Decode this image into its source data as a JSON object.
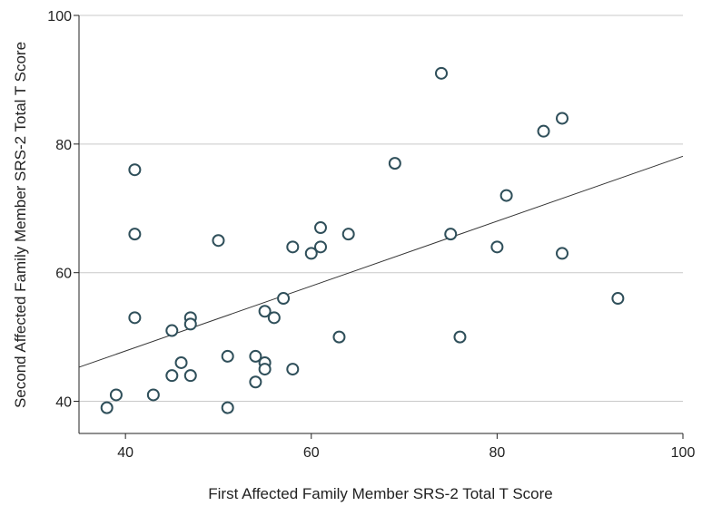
{
  "chart_data": {
    "type": "scatter",
    "xlabel": "First Affected Family Member SRS-2 Total T Score",
    "ylabel": "Second Affected Family Member SRS-2 Total T Score",
    "xlim": [
      35,
      100
    ],
    "ylim": [
      35,
      100
    ],
    "xticks": [
      40,
      60,
      80,
      100
    ],
    "yticks": [
      40,
      60,
      80,
      100
    ],
    "grid": "horizontal",
    "point_color": "#2f4f5a",
    "line_color": "#333333",
    "points": [
      {
        "x": 38,
        "y": 39
      },
      {
        "x": 39,
        "y": 41
      },
      {
        "x": 41,
        "y": 76
      },
      {
        "x": 41,
        "y": 66
      },
      {
        "x": 41,
        "y": 53
      },
      {
        "x": 43,
        "y": 41
      },
      {
        "x": 45,
        "y": 51
      },
      {
        "x": 45,
        "y": 44
      },
      {
        "x": 46,
        "y": 46
      },
      {
        "x": 47,
        "y": 53
      },
      {
        "x": 47,
        "y": 52
      },
      {
        "x": 47,
        "y": 44
      },
      {
        "x": 50,
        "y": 65
      },
      {
        "x": 51,
        "y": 47
      },
      {
        "x": 51,
        "y": 39
      },
      {
        "x": 54,
        "y": 47
      },
      {
        "x": 54,
        "y": 43
      },
      {
        "x": 55,
        "y": 54
      },
      {
        "x": 55,
        "y": 46
      },
      {
        "x": 55,
        "y": 45
      },
      {
        "x": 56,
        "y": 53
      },
      {
        "x": 57,
        "y": 56
      },
      {
        "x": 58,
        "y": 64
      },
      {
        "x": 58,
        "y": 45
      },
      {
        "x": 60,
        "y": 63
      },
      {
        "x": 61,
        "y": 67
      },
      {
        "x": 61,
        "y": 64
      },
      {
        "x": 63,
        "y": 50
      },
      {
        "x": 64,
        "y": 66
      },
      {
        "x": 69,
        "y": 77
      },
      {
        "x": 74,
        "y": 91
      },
      {
        "x": 75,
        "y": 66
      },
      {
        "x": 76,
        "y": 50
      },
      {
        "x": 80,
        "y": 64
      },
      {
        "x": 81,
        "y": 72
      },
      {
        "x": 85,
        "y": 82
      },
      {
        "x": 87,
        "y": 84
      },
      {
        "x": 87,
        "y": 63
      },
      {
        "x": 93,
        "y": 56
      }
    ],
    "trendline": {
      "x": [
        35,
        100
      ],
      "y": [
        45.3,
        78.1
      ]
    }
  }
}
